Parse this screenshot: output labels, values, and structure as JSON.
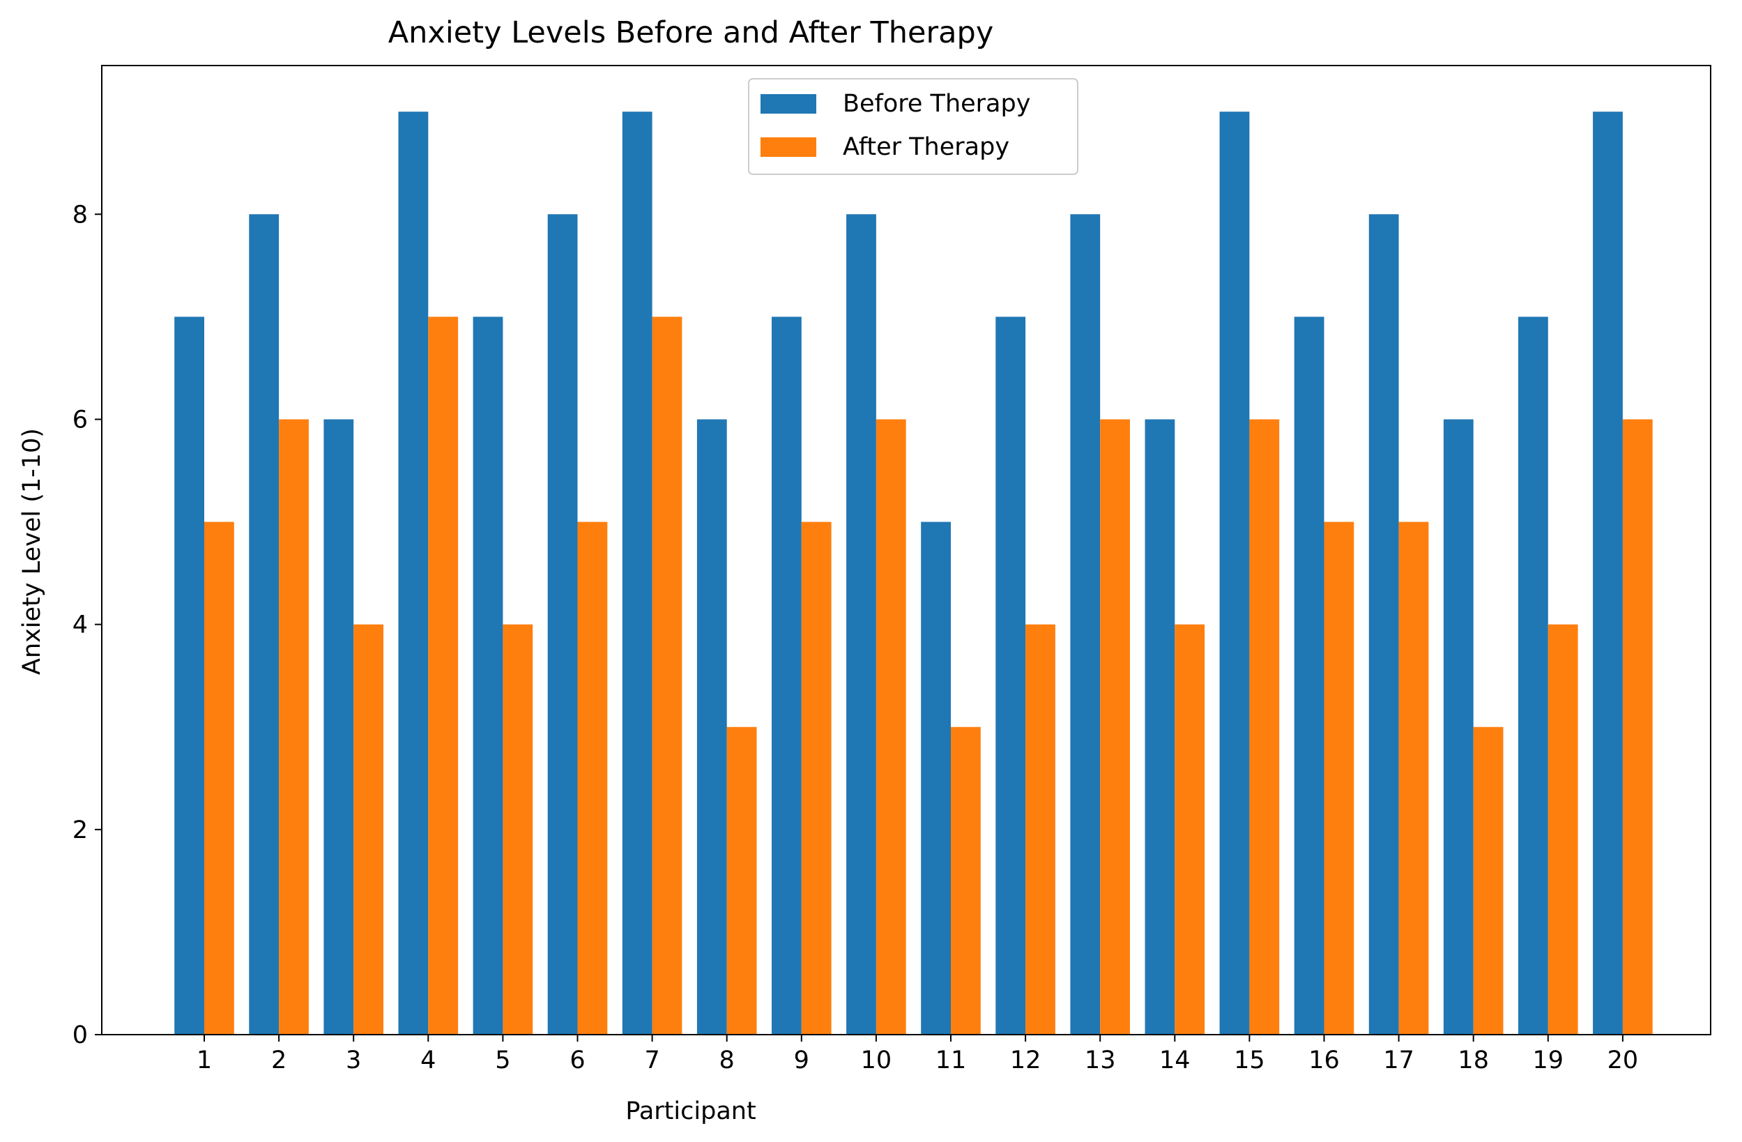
{
  "chart_data": {
    "type": "bar",
    "title": "Anxiety Levels Before and After Therapy",
    "xlabel": "Participant",
    "ylabel": "Anxiety Level (1-10)",
    "categories": [
      "1",
      "2",
      "3",
      "4",
      "5",
      "6",
      "7",
      "8",
      "9",
      "10",
      "11",
      "12",
      "13",
      "14",
      "15",
      "16",
      "17",
      "18",
      "19",
      "20"
    ],
    "series": [
      {
        "name": "Before Therapy",
        "color": "#1f77b4",
        "values": [
          7,
          8,
          6,
          9,
          7,
          8,
          9,
          6,
          7,
          8,
          5,
          7,
          8,
          6,
          9,
          7,
          8,
          6,
          7,
          9
        ]
      },
      {
        "name": "After Therapy",
        "color": "#ff7f0e",
        "values": [
          5,
          6,
          4,
          7,
          4,
          5,
          7,
          3,
          5,
          6,
          3,
          4,
          6,
          4,
          6,
          5,
          5,
          3,
          4,
          6
        ]
      }
    ],
    "yticks": [
      "0",
      "2",
      "4",
      "6",
      "8"
    ],
    "ylim": [
      0,
      9.45
    ],
    "grid": false,
    "legend_position": "top-center"
  }
}
